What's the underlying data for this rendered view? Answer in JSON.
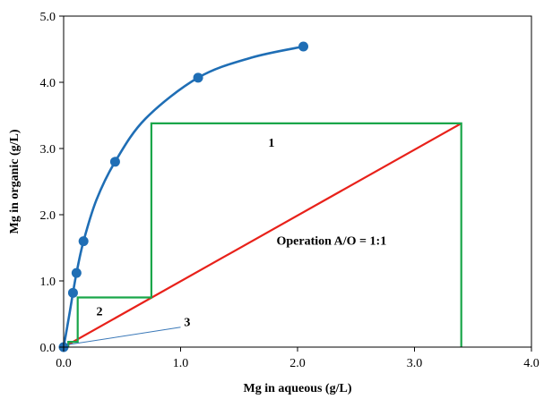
{
  "chart_data": {
    "type": "line",
    "title": "",
    "xlabel": "Mg  in aqueous  (g/L)",
    "ylabel": "Mg  in organic  (g/L)",
    "xlim": [
      0,
      4.0
    ],
    "ylim": [
      0,
      5.0
    ],
    "x_ticks": [
      "0.0",
      "1.0",
      "2.0",
      "3.0",
      "4.0"
    ],
    "y_ticks": [
      "0.0",
      "1.0",
      "2.0",
      "3.0",
      "4.0",
      "5.0"
    ],
    "grid": false,
    "legend": "none",
    "series": [
      {
        "kind": "isotherm",
        "color": "#1f6eb5",
        "points": [
          [
            0.0,
            0.0
          ],
          [
            0.08,
            0.82
          ],
          [
            0.11,
            1.12
          ],
          [
            0.17,
            1.6
          ],
          [
            0.44,
            2.8
          ],
          [
            1.15,
            4.07
          ],
          [
            2.05,
            4.54
          ]
        ],
        "curve": [
          [
            0.0,
            0.0
          ],
          [
            0.04,
            0.4
          ],
          [
            0.08,
            0.82
          ],
          [
            0.11,
            1.12
          ],
          [
            0.17,
            1.6
          ],
          [
            0.28,
            2.22
          ],
          [
            0.44,
            2.8
          ],
          [
            0.7,
            3.45
          ],
          [
            1.15,
            4.07
          ],
          [
            1.6,
            4.37
          ],
          [
            2.05,
            4.54
          ]
        ]
      },
      {
        "kind": "operating-line",
        "color": "#e8211a",
        "points": [
          [
            0.0,
            0.0
          ],
          [
            3.4,
            3.38
          ]
        ]
      },
      {
        "kind": "mccabe-thiele-steps",
        "color": "#1aa64a",
        "points": [
          [
            3.4,
            0.0
          ],
          [
            3.4,
            3.38
          ],
          [
            0.75,
            3.38
          ],
          [
            0.75,
            0.75
          ],
          [
            0.12,
            0.75
          ],
          [
            0.12,
            0.08
          ],
          [
            0.04,
            0.08
          ],
          [
            0.04,
            0.0
          ]
        ]
      }
    ],
    "annotations": [
      {
        "name": "stage-1-label",
        "text": "1",
        "x": 1.75,
        "y": 3.03
      },
      {
        "name": "stage-2-label",
        "text": "2",
        "x": 0.28,
        "y": 0.48
      },
      {
        "name": "operation-label",
        "text": "Operation  A/O = 1:1",
        "x": 1.82,
        "y": 1.55
      },
      {
        "name": "stage-3-label",
        "text": "3",
        "x": 1.03,
        "y": 0.32
      }
    ],
    "callout": {
      "text_x": 1.0,
      "text_y": 0.3,
      "target_x": 0.05,
      "target_y": 0.04,
      "color": "#3a78b8"
    }
  }
}
